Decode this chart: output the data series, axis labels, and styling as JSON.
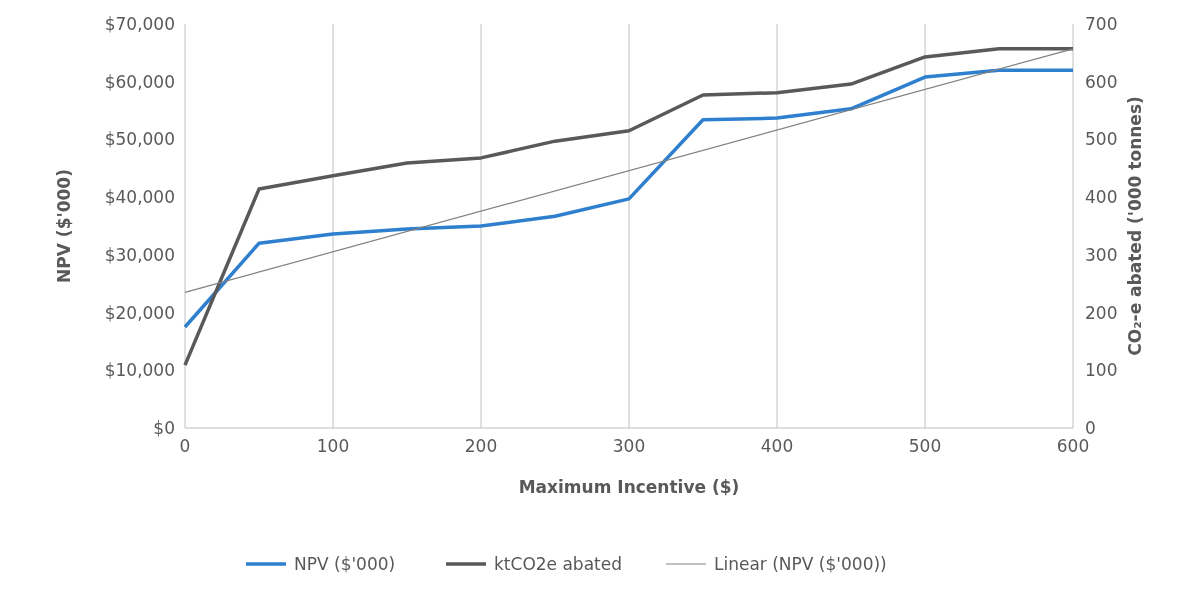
{
  "chart_data": {
    "type": "line",
    "xlabel": "Maximum Incentive ($)",
    "ylabel": "NPV ($'000)",
    "y2label": "CO₂-e abated ('000 tonnes)",
    "x": [
      0,
      50,
      100,
      150,
      200,
      250,
      300,
      350,
      400,
      450,
      500,
      550,
      600
    ],
    "series": [
      {
        "name": "NPV ($'000)",
        "color": "#2f7fcf",
        "values": [
          17500,
          32000,
          33600,
          34500,
          35000,
          36700,
          39700,
          53400,
          53700,
          55300,
          60800,
          62000,
          62000
        ]
      },
      {
        "name": "ktCO2e abated",
        "color": "#595959",
        "axis": "y2",
        "values": [
          109,
          414,
          437,
          459,
          468,
          497,
          515,
          577,
          581,
          596,
          643,
          657,
          657
        ]
      },
      {
        "name": "Linear (NPV ($'000))",
        "color": "#808080",
        "x": [
          0,
          600
        ],
        "values": [
          23500,
          65700
        ]
      }
    ],
    "xlim": [
      0,
      600
    ],
    "xticks": [
      0,
      100,
      200,
      300,
      400,
      500,
      600
    ],
    "ylim": [
      0,
      70000
    ],
    "yticks": [
      {
        "value": 0,
        "label": "$0"
      },
      {
        "value": 10000,
        "label": "$10,000"
      },
      {
        "value": 20000,
        "label": "$20,000"
      },
      {
        "value": 30000,
        "label": "$30,000"
      },
      {
        "value": 40000,
        "label": "$40,000"
      },
      {
        "value": 50000,
        "label": "$50,000"
      },
      {
        "value": 60000,
        "label": "$60,000"
      },
      {
        "value": 70000,
        "label": "$70,000"
      }
    ],
    "y2lim": [
      0,
      700
    ],
    "y2ticks": [
      0,
      100,
      200,
      300,
      400,
      500,
      600,
      700
    ],
    "grid": "x",
    "legend": "bottom",
    "marker": "none",
    "line_style": "solid"
  }
}
